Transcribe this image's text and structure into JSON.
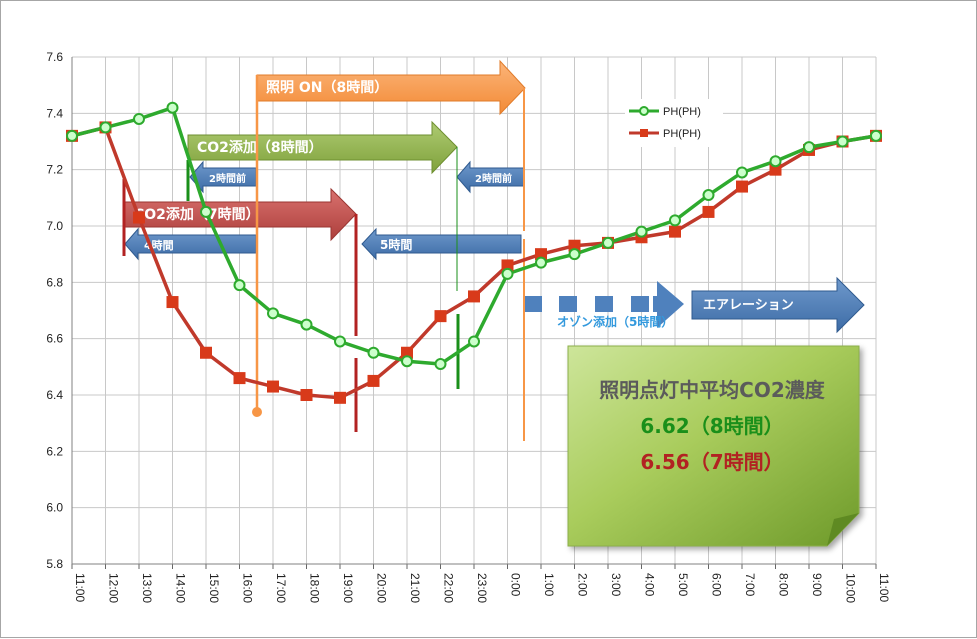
{
  "chart_data": {
    "type": "line",
    "categories": [
      "11:00",
      "12:00",
      "13:00",
      "14:00",
      "15:00",
      "16:00",
      "17:00",
      "18:00",
      "19:00",
      "20:00",
      "21:00",
      "22:00",
      "23:00",
      "0:00",
      "1:00",
      "2:00",
      "3:00",
      "4:00",
      "5:00",
      "6:00",
      "7:00",
      "8:00",
      "9:00",
      "10:00",
      "11:00"
    ],
    "ylim": [
      5.8,
      7.6
    ],
    "yticks": [
      "5.8",
      "6.0",
      "6.2",
      "6.4",
      "6.6",
      "6.8",
      "7.0",
      "7.2",
      "7.4",
      "7.6"
    ],
    "grid": true,
    "legend_position": "top-right",
    "series": [
      {
        "name": "PH(PH)",
        "color": "#2eaa2e",
        "marker": "circle",
        "values": [
          7.32,
          7.35,
          7.38,
          7.42,
          7.05,
          6.79,
          6.69,
          6.65,
          6.59,
          6.55,
          6.52,
          6.51,
          6.59,
          6.83,
          6.87,
          6.9,
          6.94,
          6.98,
          7.02,
          7.11,
          7.19,
          7.23,
          7.28,
          7.3,
          7.32
        ]
      },
      {
        "name": "PH(PH)",
        "color": "#c0392b",
        "marker": "square",
        "values": [
          7.32,
          7.35,
          7.03,
          6.73,
          6.55,
          6.46,
          6.43,
          6.4,
          6.39,
          6.45,
          6.55,
          6.68,
          6.75,
          6.86,
          6.9,
          6.93,
          6.94,
          6.96,
          6.98,
          7.05,
          7.14,
          7.2,
          7.27,
          7.3,
          7.32
        ]
      }
    ]
  },
  "annotations": {
    "light_on": "照明 ON（8時間）",
    "co2_8h": "CO2添加（8時間）",
    "co2_7h": "CO2添加（7時間）",
    "before_2h_a": "2時間前",
    "before_2h_b": "2時間前",
    "hours_4": "4時間",
    "hours_5": "5時間",
    "aeration": "エアレーション",
    "ozone": "オゾン添加（5時間）"
  },
  "summary": {
    "title": "照明点灯中平均CO2濃度",
    "line_8h": "6.62（8時間）",
    "line_7h": "6.56（7時間）"
  },
  "colors": {
    "orange": "#f79646",
    "olive_green": "#8eb34a",
    "dark_red": "#c0504d",
    "blue": "#4f81bd",
    "note_green": "#9bbb59",
    "green_text": "#1a8f1a",
    "red_text": "#b22222"
  }
}
